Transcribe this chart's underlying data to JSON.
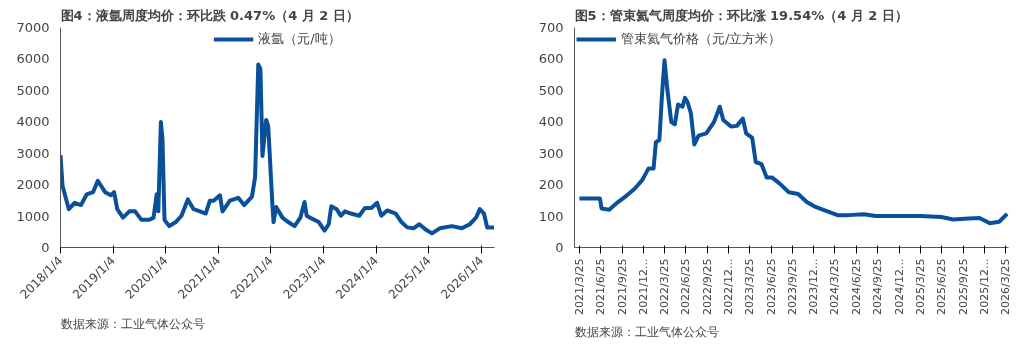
{
  "chart_data": [
    {
      "type": "line",
      "title": "图4：液氩周度均价：环比跌 0.47%（4 月 2 日）",
      "annotations": [
        "数据来源：工业气体公众号"
      ],
      "legend": "top",
      "grid": false,
      "x": [
        "2018-01-04",
        "2018-01-18",
        "2018-03-03",
        "2018-04-12",
        "2018-05-26",
        "2018-07-05",
        "2018-08-18",
        "2018-09-20",
        "2018-11-10",
        "2018-12-20",
        "2019-01-11",
        "2019-02-02",
        "2019-03-14",
        "2019-04-27",
        "2019-06-06",
        "2019-07-20",
        "2019-09-13",
        "2019-10-12",
        "2019-11-03",
        "2019-11-14",
        "2019-12-02",
        "2019-12-13",
        "2019-12-27",
        "2020-01-29",
        "2020-03-14",
        "2020-04-23",
        "2020-06-06",
        "2020-07-16",
        "2020-08-29",
        "2020-10-08",
        "2020-11-06",
        "2020-12-02",
        "2021-01-15",
        "2021-02-02",
        "2021-03-25",
        "2021-05-22",
        "2021-07-02",
        "2021-08-25",
        "2021-09-16",
        "2021-10-08",
        "2021-10-23",
        "2021-11-06",
        "2021-12-02",
        "2021-12-16",
        "2022-01-15",
        "2022-01-22",
        "2022-02-09",
        "2022-03-25",
        "2022-05-04",
        "2022-06-17",
        "2022-07-27",
        "2022-08-25",
        "2022-09-09",
        "2022-10-19",
        "2022-12-02",
        "2023-01-11",
        "2023-02-09",
        "2023-02-27",
        "2023-04-05",
        "2023-05-04",
        "2023-06-02",
        "2023-07-12",
        "2023-09-09",
        "2023-10-19",
        "2023-12-02",
        "2024-01-11",
        "2024-02-09",
        "2024-03-21",
        "2024-05-19",
        "2024-06-28",
        "2024-08-07",
        "2024-09-20",
        "2024-10-30",
        "2024-12-13",
        "2025-01-26",
        "2025-03-21",
        "2025-06-13",
        "2025-08-22",
        "2025-10-15",
        "2025-11-28",
        "2025-12-24",
        "2026-01-22",
        "2026-02-13",
        "2026-04-02"
      ],
      "series": [
        {
          "name": "液氩（元/吨）",
          "color": "#0a4f9a",
          "values": [
            2940,
            1960,
            1220,
            1420,
            1350,
            1690,
            1760,
            2120,
            1760,
            1660,
            1760,
            1220,
            950,
            1150,
            1150,
            880,
            880,
            950,
            1690,
            1150,
            3990,
            3450,
            880,
            680,
            810,
            1010,
            1530,
            1220,
            1150,
            1080,
            1490,
            1490,
            1660,
            1150,
            1490,
            1580,
            1350,
            1620,
            2230,
            5820,
            5680,
            2910,
            4060,
            3860,
            1290,
            810,
            1290,
            950,
            810,
            680,
            950,
            1450,
            1010,
            910,
            810,
            540,
            740,
            1310,
            1220,
            1010,
            1150,
            1080,
            1010,
            1260,
            1260,
            1420,
            1010,
            1180,
            1080,
            810,
            640,
            610,
            740,
            570,
            450,
            610,
            680,
            610,
            740,
            950,
            1220,
            1080,
            640,
            640
          ]
        }
      ],
      "xlim": [
        "2018-01-04",
        "2026-04-05"
      ],
      "ylim": [
        0,
        7000
      ],
      "yticks": [
        0,
        1000,
        2000,
        3000,
        4000,
        5000,
        6000,
        7000
      ],
      "xticks": [
        {
          "value": "2018-01-04",
          "label": "2018/1/4"
        },
        {
          "value": "2019-01-04",
          "label": "2019/1/4"
        },
        {
          "value": "2020-01-04",
          "label": "2020/1/4"
        },
        {
          "value": "2021-01-04",
          "label": "2021/1/4"
        },
        {
          "value": "2022-01-04",
          "label": "2022/1/4"
        },
        {
          "value": "2023-01-04",
          "label": "2023/1/4"
        },
        {
          "value": "2024-01-04",
          "label": "2024/1/4"
        },
        {
          "value": "2025-01-04",
          "label": "2025/1/4"
        },
        {
          "value": "2026-01-04",
          "label": "2026/1/4"
        }
      ]
    },
    {
      "type": "line",
      "title": "图5：管束氦气周度均价：环比涨 19.54%（4 月 2 日）",
      "annotations": [
        "数据来源：工业气体公众号"
      ],
      "legend": "top left",
      "grid": false,
      "x": [
        "2021-03-25",
        "2021-06-21",
        "2021-06-28",
        "2021-07-31",
        "2021-09-02",
        "2021-10-15",
        "2021-11-17",
        "2021-12-20",
        "2022-01-15",
        "2022-02-06",
        "2022-02-16",
        "2022-03-03",
        "2022-03-14",
        "2022-03-25",
        "2022-04-05",
        "2022-04-23",
        "2022-05-08",
        "2022-05-22",
        "2022-06-10",
        "2022-06-21",
        "2022-07-02",
        "2022-07-16",
        "2022-07-31",
        "2022-08-18",
        "2022-09-20",
        "2022-10-23",
        "2022-11-17",
        "2022-12-02",
        "2023-01-04",
        "2023-01-29",
        "2023-02-24",
        "2023-03-10",
        "2023-04-05",
        "2023-04-20",
        "2023-05-15",
        "2023-06-06",
        "2023-06-28",
        "2023-07-31",
        "2023-09-09",
        "2023-10-19",
        "2023-11-25",
        "2023-12-27",
        "2024-02-13",
        "2024-04-05",
        "2024-05-22",
        "2024-07-27",
        "2024-09-16",
        "2024-12-09",
        "2025-03-25",
        "2025-06-24",
        "2025-08-14",
        "2025-10-19",
        "2025-12-05",
        "2026-01-18",
        "2026-02-27",
        "2026-04-02"
      ],
      "series": [
        {
          "name": "管束氦气价格（元/立方米）",
          "color": "#0a4f9a",
          "values": [
            156,
            156,
            124,
            120,
            142,
            166,
            187,
            215,
            251,
            251,
            335,
            342,
            483,
            596,
            511,
            399,
            392,
            455,
            448,
            476,
            462,
            427,
            328,
            356,
            363,
            399,
            448,
            406,
            385,
            387,
            410,
            363,
            349,
            272,
            265,
            223,
            223,
            204,
            176,
            170,
            145,
            131,
            117,
            103,
            103,
            106,
            100,
            100,
            100,
            97,
            89,
            92,
            94,
            77,
            82,
            107
          ]
        }
      ],
      "xlim": [
        "2021-03-04",
        "2026-04-08"
      ],
      "ylim": [
        0,
        700
      ],
      "yticks": [
        0,
        100,
        200,
        300,
        400,
        500,
        600,
        700
      ],
      "xticks": [
        {
          "value": "2021-03-25",
          "label": "2021/3/25"
        },
        {
          "value": "2021-06-25",
          "label": "2021/6/25"
        },
        {
          "value": "2021-09-25",
          "label": "2021/9/25"
        },
        {
          "value": "2021-12-25",
          "label": "2021/12..."
        },
        {
          "value": "2022-03-25",
          "label": "2022/3/25"
        },
        {
          "value": "2022-06-25",
          "label": "2022/6/25"
        },
        {
          "value": "2022-09-25",
          "label": "2022/9/25"
        },
        {
          "value": "2022-12-25",
          "label": "2022/12..."
        },
        {
          "value": "2023-03-25",
          "label": "2023/3/25"
        },
        {
          "value": "2023-06-25",
          "label": "2023/6/25"
        },
        {
          "value": "2023-09-25",
          "label": "2023/9/25"
        },
        {
          "value": "2023-12-25",
          "label": "2023/12..."
        },
        {
          "value": "2024-03-25",
          "label": "2024/3/25"
        },
        {
          "value": "2024-06-25",
          "label": "2024/6/25"
        },
        {
          "value": "2024-09-25",
          "label": "2024/9/25"
        },
        {
          "value": "2024-12-25",
          "label": "2024/12..."
        },
        {
          "value": "2025-03-25",
          "label": "2025/3/25"
        },
        {
          "value": "2025-06-25",
          "label": "2025/6/25"
        },
        {
          "value": "2025-09-25",
          "label": "2025/9/25"
        },
        {
          "value": "2025-12-25",
          "label": "2025/12..."
        },
        {
          "value": "2026-03-25",
          "label": "2026/3/25"
        }
      ]
    }
  ]
}
